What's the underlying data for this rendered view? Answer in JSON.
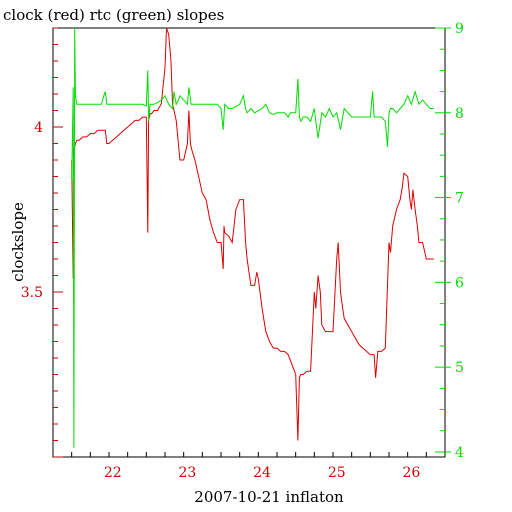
{
  "chart_data": {
    "type": "line",
    "title": "clock (red) rtc (green) slopes",
    "xlabel": "2007-10-21 inflaton",
    "ylabel": "clockslope",
    "xlim": [
      21.2,
      26.45
    ],
    "left_axis": {
      "ylim": [
        3.0,
        4.3
      ],
      "color": "#cc0000",
      "ticks": [
        {
          "value": 3.5,
          "label": "3.5"
        },
        {
          "value": 4.0,
          "label": "4"
        }
      ]
    },
    "right_axis": {
      "ylim": [
        3.94,
        9.0
      ],
      "color": "#00dd00",
      "ticks": [
        {
          "value": 4,
          "label": "4"
        },
        {
          "value": 5,
          "label": "5"
        },
        {
          "value": 6,
          "label": "6"
        },
        {
          "value": 7,
          "label": "7"
        },
        {
          "value": 8,
          "label": "8"
        },
        {
          "value": 9,
          "label": "9"
        }
      ]
    },
    "x_ticks": [
      {
        "value": 22,
        "label": "22"
      },
      {
        "value": 23,
        "label": "23"
      },
      {
        "value": 24,
        "label": "24"
      },
      {
        "value": 25,
        "label": "25"
      },
      {
        "value": 26,
        "label": "26"
      }
    ],
    "grid": false,
    "series": [
      {
        "name": "clock",
        "axis": "left",
        "color": "#dd0000",
        "x": [
          21.45,
          21.47,
          21.48,
          21.5,
          21.52,
          21.55,
          21.6,
          21.65,
          21.7,
          21.75,
          21.8,
          21.85,
          21.9,
          21.92,
          21.95,
          22.0,
          22.05,
          22.1,
          22.15,
          22.2,
          22.25,
          22.3,
          22.35,
          22.4,
          22.45,
          22.47,
          22.48,
          22.5,
          22.52,
          22.55,
          22.6,
          22.65,
          22.7,
          22.72,
          22.75,
          22.78,
          22.8,
          22.85,
          22.88,
          22.9,
          22.95,
          23.0,
          23.02,
          23.04,
          23.06,
          23.1,
          23.15,
          23.2,
          23.25,
          23.3,
          23.35,
          23.4,
          23.45,
          23.48,
          23.49,
          23.5,
          23.55,
          23.6,
          23.65,
          23.7,
          23.75,
          23.78,
          23.8,
          23.85,
          23.9,
          23.93,
          23.95,
          24.0,
          24.05,
          24.1,
          24.15,
          24.2,
          24.25,
          24.3,
          24.35,
          24.4,
          24.45,
          24.48,
          24.5,
          24.52,
          24.55,
          24.6,
          24.65,
          24.7,
          24.72,
          24.75,
          24.78,
          24.8,
          24.85,
          24.9,
          24.95,
          25.0,
          25.02,
          25.05,
          25.08,
          25.1,
          25.15,
          25.2,
          25.25,
          25.3,
          25.35,
          25.4,
          25.45,
          25.5,
          25.52,
          25.55,
          25.6,
          25.65,
          25.7,
          25.72,
          25.75,
          25.8,
          25.85,
          25.88,
          25.9,
          25.95,
          25.98,
          26.0,
          26.02,
          26.05,
          26.08,
          26.1,
          26.15,
          26.2,
          26.25,
          26.3
        ],
        "y": [
          3.9,
          3.54,
          3.93,
          3.95,
          3.96,
          3.96,
          3.97,
          3.97,
          3.98,
          3.98,
          3.99,
          3.99,
          3.99,
          3.95,
          3.95,
          3.96,
          3.97,
          3.98,
          3.99,
          4.0,
          4.01,
          4.02,
          4.02,
          4.03,
          4.03,
          3.68,
          4.02,
          4.04,
          4.04,
          4.05,
          4.05,
          4.07,
          4.18,
          4.3,
          4.28,
          4.2,
          4.07,
          4.02,
          3.95,
          3.9,
          3.9,
          3.95,
          4.05,
          3.95,
          3.93,
          3.9,
          3.85,
          3.8,
          3.78,
          3.72,
          3.68,
          3.65,
          3.65,
          3.57,
          3.7,
          3.68,
          3.67,
          3.65,
          3.75,
          3.78,
          3.78,
          3.65,
          3.6,
          3.52,
          3.52,
          3.56,
          3.54,
          3.45,
          3.38,
          3.35,
          3.33,
          3.33,
          3.32,
          3.32,
          3.31,
          3.28,
          3.25,
          3.05,
          3.24,
          3.25,
          3.25,
          3.26,
          3.26,
          3.5,
          3.45,
          3.55,
          3.5,
          3.4,
          3.38,
          3.38,
          3.38,
          3.6,
          3.65,
          3.5,
          3.45,
          3.42,
          3.4,
          3.38,
          3.36,
          3.34,
          3.33,
          3.32,
          3.31,
          3.31,
          3.24,
          3.32,
          3.32,
          3.33,
          3.65,
          3.62,
          3.7,
          3.75,
          3.78,
          3.82,
          3.86,
          3.85,
          3.78,
          3.75,
          3.81,
          3.75,
          3.7,
          3.65,
          3.65,
          3.6,
          3.6,
          3.6
        ]
      },
      {
        "name": "rtc",
        "axis": "right",
        "color": "#00dd00",
        "x": [
          21.45,
          21.47,
          21.48,
          21.49,
          21.5,
          21.52,
          21.55,
          21.6,
          21.65,
          21.7,
          21.75,
          21.8,
          21.85,
          21.88,
          21.9,
          21.92,
          21.95,
          22.0,
          22.1,
          22.2,
          22.3,
          22.4,
          22.45,
          22.47,
          22.48,
          22.5,
          22.55,
          22.6,
          22.65,
          22.7,
          22.75,
          22.8,
          22.82,
          22.85,
          22.88,
          22.9,
          22.95,
          23.0,
          23.02,
          23.05,
          23.1,
          23.2,
          23.3,
          23.4,
          23.45,
          23.48,
          23.5,
          23.55,
          23.6,
          23.7,
          23.75,
          23.78,
          23.8,
          23.85,
          23.9,
          24.0,
          24.05,
          24.1,
          24.15,
          24.2,
          24.3,
          24.35,
          24.38,
          24.4,
          24.45,
          24.48,
          24.5,
          24.52,
          24.55,
          24.6,
          24.65,
          24.7,
          24.72,
          24.75,
          24.8,
          24.85,
          24.9,
          24.95,
          25.0,
          25.05,
          25.1,
          25.2,
          25.3,
          25.4,
          25.45,
          25.48,
          25.5,
          25.55,
          25.6,
          25.65,
          25.68,
          25.7,
          25.72,
          25.75,
          25.8,
          25.85,
          25.9,
          25.95,
          26.0,
          26.05,
          26.1,
          26.15,
          26.2,
          26.25,
          26.3
        ],
        "y": [
          7.2,
          8.3,
          4.05,
          9.0,
          8.2,
          8.1,
          8.1,
          8.1,
          8.1,
          8.1,
          8.1,
          8.1,
          8.1,
          8.2,
          8.25,
          8.1,
          8.1,
          8.1,
          8.1,
          8.1,
          8.1,
          8.1,
          8.08,
          8.5,
          7.9,
          8.1,
          8.1,
          8.12,
          8.15,
          8.2,
          8.1,
          8.05,
          8.25,
          8.1,
          8.15,
          8.2,
          8.15,
          8.1,
          8.3,
          8.1,
          8.1,
          8.1,
          8.1,
          8.1,
          8.05,
          7.8,
          8.1,
          8.05,
          8.05,
          8.1,
          8.2,
          8.05,
          8.0,
          8.05,
          8.0,
          8.05,
          8.1,
          8.0,
          7.98,
          8.0,
          8.0,
          7.95,
          8.0,
          8.0,
          8.0,
          8.4,
          7.95,
          7.9,
          7.95,
          7.95,
          7.9,
          8.05,
          7.9,
          7.7,
          8.0,
          7.95,
          8.05,
          7.95,
          8.0,
          7.8,
          8.05,
          7.95,
          7.95,
          7.95,
          7.95,
          8.25,
          7.95,
          7.95,
          7.95,
          7.9,
          7.6,
          8.0,
          8.05,
          8.05,
          8.0,
          8.05,
          8.1,
          8.2,
          8.1,
          8.25,
          8.1,
          8.15,
          8.1,
          8.05,
          8.05
        ]
      }
    ]
  }
}
